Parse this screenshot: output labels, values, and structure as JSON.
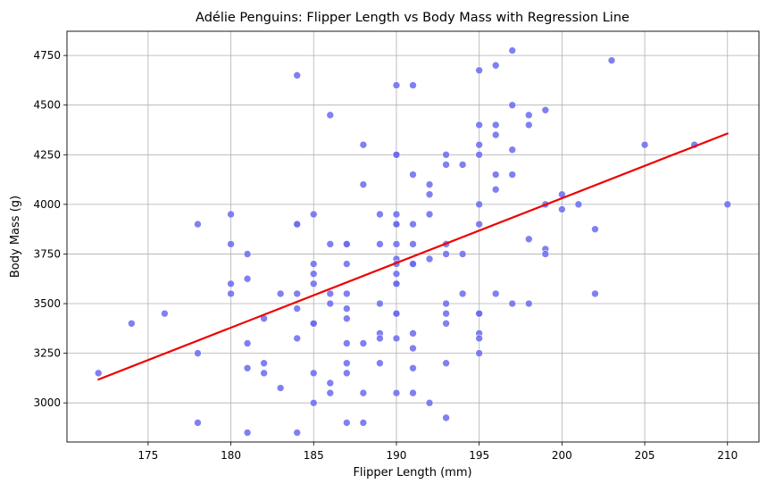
{
  "chart_data": {
    "type": "scatter",
    "title": "Adélie Penguins: Flipper Length vs Body Mass with Regression Line",
    "xlabel": "Flipper Length (mm)",
    "ylabel": "Body Mass (g)",
    "xlim": [
      170.1,
      211.9
    ],
    "ylim": [
      2803,
      4872
    ],
    "xticks": [
      175,
      180,
      185,
      190,
      195,
      200,
      205,
      210
    ],
    "yticks": [
      3000,
      3250,
      3500,
      3750,
      4000,
      4250,
      4500,
      4750
    ],
    "grid": true,
    "point_color": "#6a6af0",
    "line_color": "#ee0000",
    "regression": {
      "x": [
        172,
        210
      ],
      "y": [
        3118,
        4357
      ]
    },
    "points": [
      [
        172,
        3150
      ],
      [
        174,
        3400
      ],
      [
        176,
        3450
      ],
      [
        178,
        3900
      ],
      [
        178,
        3250
      ],
      [
        178,
        2900
      ],
      [
        180,
        3950
      ],
      [
        180,
        3800
      ],
      [
        180,
        3600
      ],
      [
        180,
        3550
      ],
      [
        181,
        3750
      ],
      [
        181,
        3625
      ],
      [
        181,
        3300
      ],
      [
        181,
        3175
      ],
      [
        181,
        2850
      ],
      [
        182,
        3425
      ],
      [
        182,
        3200
      ],
      [
        182,
        3150
      ],
      [
        183,
        3550
      ],
      [
        183,
        3075
      ],
      [
        184,
        4650
      ],
      [
        184,
        3900
      ],
      [
        184,
        3900
      ],
      [
        184,
        3550
      ],
      [
        184,
        3475
      ],
      [
        184,
        3325
      ],
      [
        184,
        2850
      ],
      [
        185,
        3950
      ],
      [
        185,
        3700
      ],
      [
        185,
        3650
      ],
      [
        185,
        3600
      ],
      [
        185,
        3400
      ],
      [
        185,
        3400
      ],
      [
        185,
        3150
      ],
      [
        185,
        3000
      ],
      [
        186,
        4450
      ],
      [
        186,
        3800
      ],
      [
        186,
        3550
      ],
      [
        186,
        3500
      ],
      [
        186,
        3100
      ],
      [
        186,
        3050
      ],
      [
        187,
        3800
      ],
      [
        187,
        3800
      ],
      [
        187,
        3700
      ],
      [
        187,
        3550
      ],
      [
        187,
        3475
      ],
      [
        187,
        3425
      ],
      [
        187,
        3300
      ],
      [
        187,
        3200
      ],
      [
        187,
        3150
      ],
      [
        187,
        2900
      ],
      [
        188,
        4300
      ],
      [
        188,
        4100
      ],
      [
        188,
        3300
      ],
      [
        188,
        3050
      ],
      [
        188,
        2900
      ],
      [
        189,
        3950
      ],
      [
        189,
        3800
      ],
      [
        189,
        3500
      ],
      [
        189,
        3350
      ],
      [
        189,
        3325
      ],
      [
        189,
        3200
      ],
      [
        190,
        4600
      ],
      [
        190,
        4250
      ],
      [
        190,
        4250
      ],
      [
        190,
        3950
      ],
      [
        190,
        3900
      ],
      [
        190,
        3900
      ],
      [
        190,
        3800
      ],
      [
        190,
        3725
      ],
      [
        190,
        3700
      ],
      [
        190,
        3650
      ],
      [
        190,
        3600
      ],
      [
        190,
        3600
      ],
      [
        190,
        3450
      ],
      [
        190,
        3450
      ],
      [
        190,
        3325
      ],
      [
        190,
        3050
      ],
      [
        191,
        4600
      ],
      [
        191,
        4150
      ],
      [
        191,
        3900
      ],
      [
        191,
        3800
      ],
      [
        191,
        3700
      ],
      [
        191,
        3700
      ],
      [
        191,
        3350
      ],
      [
        191,
        3275
      ],
      [
        191,
        3175
      ],
      [
        191,
        3050
      ],
      [
        192,
        4100
      ],
      [
        192,
        4050
      ],
      [
        192,
        3950
      ],
      [
        192,
        3725
      ],
      [
        192,
        3000
      ],
      [
        193,
        4250
      ],
      [
        193,
        4200
      ],
      [
        193,
        3800
      ],
      [
        193,
        3750
      ],
      [
        193,
        3500
      ],
      [
        193,
        3450
      ],
      [
        193,
        3400
      ],
      [
        193,
        3200
      ],
      [
        193,
        2925
      ],
      [
        194,
        4200
      ],
      [
        194,
        3750
      ],
      [
        194,
        3550
      ],
      [
        195,
        4675
      ],
      [
        195,
        4400
      ],
      [
        195,
        4300
      ],
      [
        195,
        4250
      ],
      [
        195,
        4000
      ],
      [
        195,
        3900
      ],
      [
        195,
        3450
      ],
      [
        195,
        3450
      ],
      [
        195,
        3350
      ],
      [
        195,
        3325
      ],
      [
        195,
        3250
      ],
      [
        196,
        4700
      ],
      [
        196,
        4400
      ],
      [
        196,
        4350
      ],
      [
        196,
        4150
      ],
      [
        196,
        4075
      ],
      [
        196,
        3550
      ],
      [
        197,
        4775
      ],
      [
        197,
        4500
      ],
      [
        197,
        4275
      ],
      [
        197,
        4150
      ],
      [
        197,
        3500
      ],
      [
        198,
        4450
      ],
      [
        198,
        4400
      ],
      [
        198,
        3825
      ],
      [
        198,
        3500
      ],
      [
        199,
        4475
      ],
      [
        199,
        4000
      ],
      [
        199,
        3775
      ],
      [
        199,
        3750
      ],
      [
        200,
        4050
      ],
      [
        200,
        3975
      ],
      [
        201,
        4000
      ],
      [
        202,
        3875
      ],
      [
        202,
        3550
      ],
      [
        203,
        4725
      ],
      [
        205,
        4300
      ],
      [
        208,
        4300
      ],
      [
        210,
        4000
      ]
    ]
  }
}
